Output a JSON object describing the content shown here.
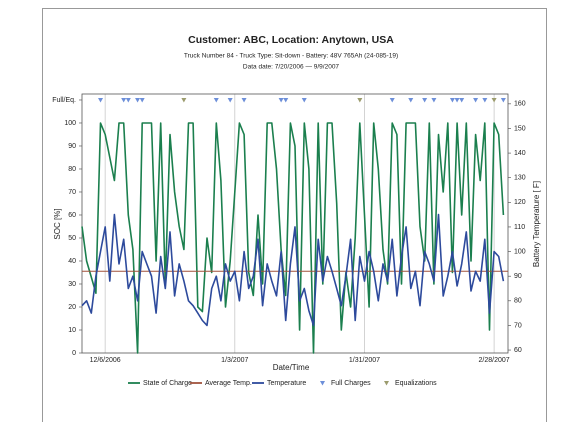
{
  "chart_data": {
    "type": "line",
    "title": "Customer: ABC,  Location: Anytown, USA",
    "subtitle": [
      "Truck Number 84 - Truck Type: Sit-down - Battery: 48V 765Ah (24-085-19)",
      "Data date: 7/20/2006 — 9/9/2007"
    ],
    "x_label": "Date/Time",
    "y_label": "SOC [%]",
    "y2_label": "Battery Temperature [ F]",
    "xlim": [
      "2006-12-01",
      "2007-03-03"
    ],
    "xticks": [
      {
        "value": "2006-12-06",
        "label": "12/6/2006"
      },
      {
        "value": "2007-01-03",
        "label": "1/3/2007"
      },
      {
        "value": "2007-01-31",
        "label": "1/31/2007"
      },
      {
        "value": "2007-02-28",
        "label": "2/28/2007"
      }
    ],
    "ylim": [
      0,
      112.6
    ],
    "yticks": [
      0,
      10,
      20,
      30,
      40,
      50,
      60,
      70,
      80,
      90,
      100,
      {
        "value": 110,
        "label": "Full/Eq."
      }
    ],
    "y2lim": [
      58.8,
      164
    ],
    "y2ticks": [
      60,
      70,
      80,
      90,
      100,
      110,
      120,
      130,
      140,
      150,
      160
    ],
    "grid": true,
    "legend": "bottom",
    "x": [
      "2006-12-01",
      "2006-12-02",
      "2006-12-03",
      "2006-12-04",
      "2006-12-05",
      "2006-12-06",
      "2006-12-07",
      "2006-12-08",
      "2006-12-09",
      "2006-12-10",
      "2006-12-11",
      "2006-12-12",
      "2006-12-13",
      "2006-12-14",
      "2006-12-15",
      "2006-12-16",
      "2006-12-17",
      "2006-12-18",
      "2006-12-19",
      "2006-12-20",
      "2006-12-21",
      "2006-12-22",
      "2006-12-23",
      "2006-12-24",
      "2006-12-25",
      "2006-12-26",
      "2006-12-27",
      "2006-12-28",
      "2006-12-29",
      "2006-12-30",
      "2006-12-31",
      "2007-01-01",
      "2007-01-02",
      "2007-01-03",
      "2007-01-04",
      "2007-01-05",
      "2007-01-06",
      "2007-01-07",
      "2007-01-08",
      "2007-01-09",
      "2007-01-10",
      "2007-01-11",
      "2007-01-12",
      "2007-01-13",
      "2007-01-14",
      "2007-01-15",
      "2007-01-16",
      "2007-01-17",
      "2007-01-18",
      "2007-01-19",
      "2007-01-20",
      "2007-01-21",
      "2007-01-22",
      "2007-01-23",
      "2007-01-24",
      "2007-01-25",
      "2007-01-26",
      "2007-01-27",
      "2007-01-28",
      "2007-01-29",
      "2007-01-30",
      "2007-01-31",
      "2007-02-01",
      "2007-02-02",
      "2007-02-03",
      "2007-02-04",
      "2007-02-05",
      "2007-02-06",
      "2007-02-07",
      "2007-02-08",
      "2007-02-09",
      "2007-02-10",
      "2007-02-11",
      "2007-02-12",
      "2007-02-13",
      "2007-02-14",
      "2007-02-15",
      "2007-02-16",
      "2007-02-17",
      "2007-02-18",
      "2007-02-19",
      "2007-02-20",
      "2007-02-21",
      "2007-02-22",
      "2007-02-23",
      "2007-02-24",
      "2007-02-25",
      "2007-02-26",
      "2007-02-27",
      "2007-02-28",
      "2007-03-01",
      "2007-03-02"
    ],
    "series": [
      {
        "name": "State of Charge",
        "color": "#1b7f4e",
        "values": [
          55,
          40,
          33,
          26,
          100,
          95,
          85,
          75,
          100,
          100,
          60,
          45,
          0,
          100,
          100,
          100,
          40,
          100,
          30,
          95,
          70,
          55,
          45,
          100,
          100,
          20,
          18,
          50,
          35,
          100,
          75,
          20,
          40,
          70,
          100,
          95,
          35,
          25,
          60,
          30,
          100,
          100,
          80,
          45,
          25,
          100,
          90,
          10,
          100,
          80,
          0,
          100,
          30,
          100,
          100,
          65,
          10,
          35,
          20,
          50,
          100,
          60,
          20,
          100,
          80,
          45,
          30,
          100,
          95,
          30,
          100,
          100,
          100,
          55,
          40,
          100,
          30,
          95,
          70,
          100,
          35,
          100,
          60,
          100,
          40,
          95,
          75,
          100,
          10,
          100,
          95,
          60
        ]
      },
      {
        "name": "Average Temp.",
        "color": "#a0523c",
        "axis": "y2",
        "x": [
          "2006-12-01",
          "2007-03-03"
        ],
        "values": [
          92,
          92
        ]
      },
      {
        "name": "Temperature",
        "color": "#2d4a9c",
        "axis": "y2",
        "values": [
          78,
          80,
          75,
          90,
          100,
          110,
          88,
          115,
          95,
          105,
          85,
          90,
          80,
          100,
          95,
          90,
          75,
          98,
          85,
          108,
          82,
          95,
          88,
          80,
          78,
          75,
          72,
          70,
          85,
          90,
          80,
          95,
          88,
          92,
          80,
          100,
          85,
          90,
          105,
          78,
          95,
          88,
          82,
          100,
          72,
          95,
          110,
          80,
          85,
          76,
          70,
          105,
          88,
          98,
          92,
          85,
          78,
          90,
          105,
          72,
          98,
          88,
          100,
          92,
          80,
          95,
          88,
          105,
          82,
          98,
          110,
          85,
          92,
          78,
          100,
          95,
          88,
          115,
          82,
          90,
          100,
          86,
          95,
          108,
          84,
          92,
          88,
          105,
          75,
          100,
          98,
          88
        ]
      },
      {
        "name": "Full Charges",
        "color": "#6d8fd9",
        "marker": "triangle",
        "x": [
          "2006-12-05",
          "2006-12-10",
          "2006-12-11",
          "2006-12-13",
          "2006-12-14",
          "2006-12-30",
          "2007-01-02",
          "2007-01-05",
          "2007-01-13",
          "2007-01-14",
          "2007-01-18",
          "2007-02-06",
          "2007-02-10",
          "2007-02-13",
          "2007-02-15",
          "2007-02-19",
          "2007-02-20",
          "2007-02-21",
          "2007-02-24",
          "2007-02-26",
          "2007-03-02"
        ]
      },
      {
        "name": "Equalizations",
        "color": "#9c9c6e",
        "marker": "triangle",
        "x": [
          "2006-12-23",
          "2007-01-30",
          "2007-02-28"
        ]
      }
    ]
  }
}
